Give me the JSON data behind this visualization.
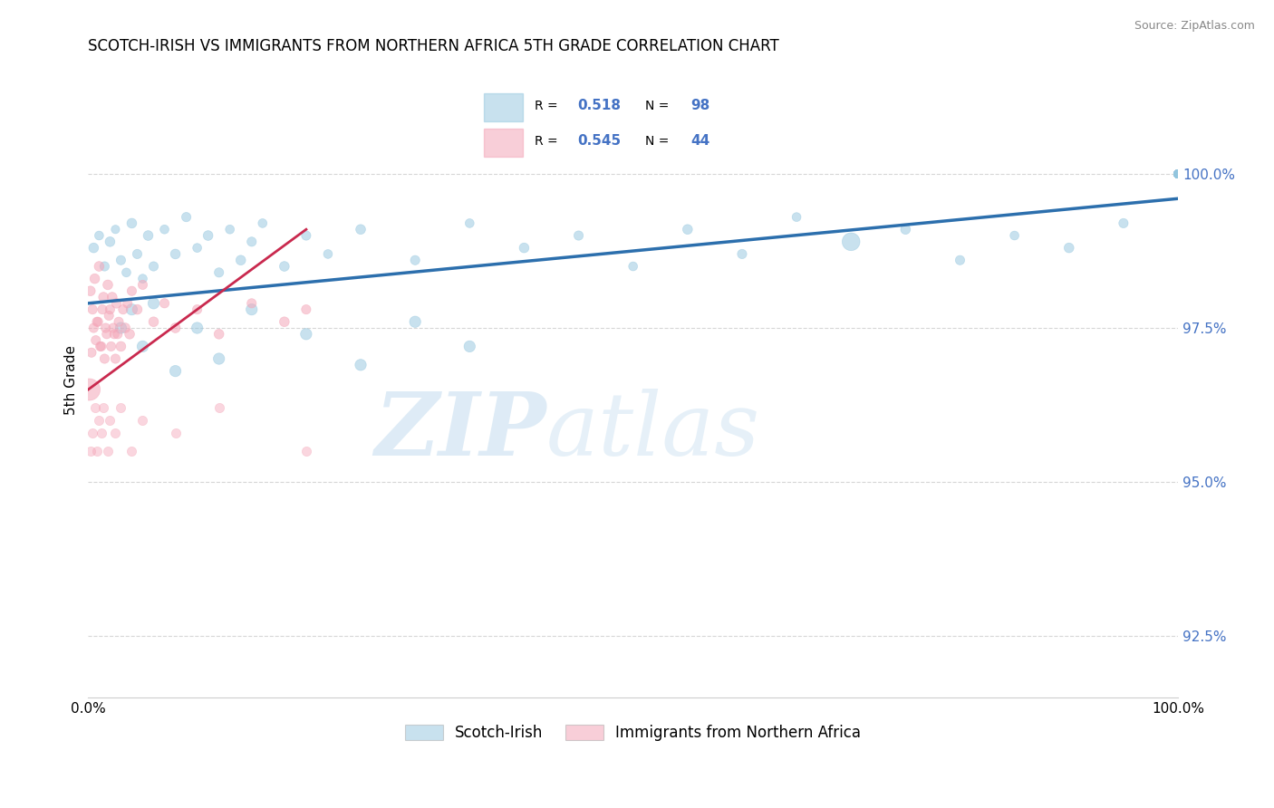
{
  "title": "SCOTCH-IRISH VS IMMIGRANTS FROM NORTHERN AFRICA 5TH GRADE CORRELATION CHART",
  "source_text": "Source: ZipAtlas.com",
  "ylabel": "5th Grade",
  "watermark_zip": "ZIP",
  "watermark_atlas": "atlas",
  "xlim": [
    0.0,
    100.0
  ],
  "ylim": [
    91.5,
    101.8
  ],
  "yticks": [
    92.5,
    95.0,
    97.5,
    100.0
  ],
  "ytick_labels": [
    "92.5%",
    "95.0%",
    "97.5%",
    "100.0%"
  ],
  "xticks": [
    0.0,
    100.0
  ],
  "xtick_labels": [
    "0.0%",
    "100.0%"
  ],
  "legend_blue_label": "Scotch-Irish",
  "legend_pink_label": "Immigrants from Northern Africa",
  "R_blue": 0.518,
  "N_blue": 98,
  "R_pink": 0.545,
  "N_pink": 44,
  "blue_color": "#92c5de",
  "pink_color": "#f4a6b8",
  "blue_line_color": "#2c6fad",
  "pink_line_color": "#c9294e",
  "background_color": "#ffffff",
  "grid_color": "#cccccc",
  "blue_trend_x0": 0.0,
  "blue_trend_y0": 97.9,
  "blue_trend_x1": 100.0,
  "blue_trend_y1": 99.6,
  "pink_trend_x0": 0.0,
  "pink_trend_y0": 96.5,
  "pink_trend_x1": 20.0,
  "pink_trend_y1": 99.1,
  "blue_scatter_x": [
    0.5,
    1.0,
    1.5,
    2.0,
    2.5,
    3.0,
    3.5,
    4.0,
    4.5,
    5.0,
    5.5,
    6.0,
    7.0,
    8.0,
    9.0,
    10.0,
    11.0,
    12.0,
    13.0,
    14.0,
    15.0,
    16.0,
    18.0,
    20.0,
    22.0,
    25.0,
    30.0,
    35.0,
    40.0,
    45.0,
    50.0,
    55.0,
    60.0,
    65.0,
    70.0,
    75.0,
    80.0,
    85.0,
    90.0,
    95.0,
    3.0,
    4.0,
    5.0,
    6.0,
    8.0,
    10.0,
    12.0,
    15.0,
    20.0,
    25.0,
    30.0,
    35.0,
    100.0,
    100.0,
    100.0,
    100.0,
    100.0,
    100.0,
    100.0,
    100.0,
    100.0,
    100.0,
    100.0,
    100.0,
    100.0,
    100.0,
    100.0,
    100.0,
    100.0,
    100.0,
    100.0,
    100.0,
    100.0,
    100.0,
    100.0,
    100.0,
    100.0,
    100.0,
    100.0,
    100.0,
    100.0,
    100.0,
    100.0,
    100.0,
    100.0,
    100.0,
    100.0,
    100.0,
    100.0,
    100.0,
    100.0,
    100.0,
    100.0,
    100.0,
    100.0,
    100.0,
    100.0,
    100.0
  ],
  "blue_scatter_y": [
    98.8,
    99.0,
    98.5,
    98.9,
    99.1,
    98.6,
    98.4,
    99.2,
    98.7,
    98.3,
    99.0,
    98.5,
    99.1,
    98.7,
    99.3,
    98.8,
    99.0,
    98.4,
    99.1,
    98.6,
    98.9,
    99.2,
    98.5,
    99.0,
    98.7,
    99.1,
    98.6,
    99.2,
    98.8,
    99.0,
    98.5,
    99.1,
    98.7,
    99.3,
    98.9,
    99.1,
    98.6,
    99.0,
    98.8,
    99.2,
    97.5,
    97.8,
    97.2,
    97.9,
    96.8,
    97.5,
    97.0,
    97.8,
    97.4,
    96.9,
    97.6,
    97.2,
    100.0,
    100.0,
    100.0,
    100.0,
    100.0,
    100.0,
    100.0,
    100.0,
    100.0,
    100.0,
    100.0,
    100.0,
    100.0,
    100.0,
    100.0,
    100.0,
    100.0,
    100.0,
    100.0,
    100.0,
    100.0,
    100.0,
    100.0,
    100.0,
    100.0,
    100.0,
    100.0,
    100.0,
    100.0,
    100.0,
    100.0,
    100.0,
    100.0,
    100.0,
    100.0,
    100.0,
    100.0,
    100.0,
    100.0,
    100.0,
    100.0,
    100.0,
    100.0,
    100.0,
    100.0,
    100.0
  ],
  "blue_scatter_sizes": [
    60,
    50,
    55,
    60,
    45,
    55,
    50,
    60,
    55,
    50,
    60,
    55,
    50,
    60,
    55,
    50,
    60,
    55,
    50,
    60,
    55,
    50,
    60,
    55,
    50,
    60,
    55,
    50,
    60,
    55,
    50,
    60,
    55,
    50,
    200,
    60,
    55,
    50,
    60,
    55,
    80,
    80,
    80,
    80,
    80,
    80,
    80,
    80,
    80,
    80,
    80,
    80,
    40,
    40,
    40,
    40,
    40,
    40,
    40,
    40,
    40,
    40,
    40,
    40,
    40,
    40,
    40,
    40,
    40,
    40,
    40,
    40,
    40,
    40,
    40,
    40,
    40,
    40,
    40,
    40,
    40,
    40,
    40,
    40,
    40,
    40,
    40,
    40,
    40,
    40,
    40,
    40,
    40,
    40,
    40,
    40,
    40,
    40
  ],
  "pink_scatter_x": [
    0.2,
    0.4,
    0.6,
    0.8,
    1.0,
    1.2,
    1.4,
    1.6,
    1.8,
    2.0,
    2.2,
    2.4,
    2.6,
    2.8,
    3.0,
    3.2,
    3.4,
    3.6,
    3.8,
    4.0,
    4.5,
    5.0,
    6.0,
    7.0,
    8.0,
    10.0,
    12.0,
    15.0,
    18.0,
    20.0,
    0.3,
    0.5,
    0.7,
    0.9,
    1.1,
    1.3,
    1.5,
    1.7,
    1.9,
    2.1,
    2.3,
    2.5,
    2.7,
    0.1
  ],
  "pink_scatter_y": [
    98.1,
    97.8,
    98.3,
    97.6,
    98.5,
    97.2,
    98.0,
    97.5,
    98.2,
    97.8,
    98.0,
    97.4,
    97.9,
    97.6,
    97.2,
    97.8,
    97.5,
    97.9,
    97.4,
    98.1,
    97.8,
    98.2,
    97.6,
    97.9,
    97.5,
    97.8,
    97.4,
    97.9,
    97.6,
    97.8,
    97.1,
    97.5,
    97.3,
    97.6,
    97.2,
    97.8,
    97.0,
    97.4,
    97.7,
    97.2,
    97.5,
    97.0,
    97.4,
    96.5
  ],
  "pink_scatter_sizes": [
    60,
    55,
    60,
    55,
    60,
    55,
    60,
    55,
    60,
    55,
    60,
    55,
    60,
    55,
    60,
    55,
    60,
    55,
    60,
    55,
    60,
    55,
    60,
    55,
    60,
    55,
    60,
    55,
    60,
    55,
    55,
    55,
    55,
    55,
    55,
    55,
    55,
    55,
    55,
    55,
    55,
    55,
    55,
    300
  ],
  "pink_scatter_x2": [
    0.2,
    0.4,
    0.6,
    0.8,
    1.0,
    1.2,
    1.4,
    1.8,
    2.0,
    2.5,
    3.0,
    4.0,
    5.0,
    8.0,
    12.0,
    20.0
  ],
  "pink_scatter_y2": [
    95.5,
    95.8,
    96.2,
    95.5,
    96.0,
    95.8,
    96.2,
    95.5,
    96.0,
    95.8,
    96.2,
    95.5,
    96.0,
    95.8,
    96.2,
    95.5
  ]
}
